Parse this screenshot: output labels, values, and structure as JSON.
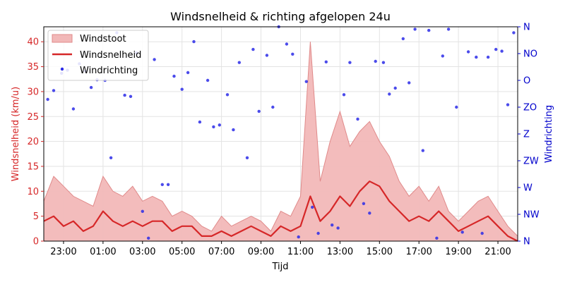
{
  "chart_data": {
    "type": "line",
    "title": "Windsnelheid & richting afgelopen 24u",
    "xlabel": "Tijd",
    "ylabel": "Windsnelheid (km/u)",
    "y2label": "Windrichting",
    "xlim": [
      -1.0,
      23.0
    ],
    "ylim": [
      0,
      43
    ],
    "y2lim": [
      0,
      360
    ],
    "x_unit": "hours since 23:00",
    "x_tick_labels": [
      "23:00",
      "01:00",
      "03:00",
      "05:00",
      "07:00",
      "09:00",
      "11:00",
      "13:00",
      "15:00",
      "17:00",
      "19:00",
      "21:00"
    ],
    "x_tick_values": [
      0,
      2,
      4,
      6,
      8,
      10,
      12,
      14,
      16,
      18,
      20,
      22
    ],
    "y_ticks": [
      0,
      5,
      10,
      15,
      20,
      25,
      30,
      35,
      40
    ],
    "y2_tick_labels": [
      "N",
      "NW",
      "W",
      "ZW",
      "Z",
      "ZO",
      "O",
      "NO",
      "N"
    ],
    "y2_tick_values": [
      0,
      45,
      90,
      135,
      180,
      225,
      270,
      315,
      360
    ],
    "legend": {
      "position": "top-left",
      "entries": [
        "Windstoot",
        "Windsnelheid",
        "Windrichting"
      ]
    },
    "grid": true,
    "colors": {
      "gust": "#e99a9a",
      "speed": "#d62728",
      "direction": "#1f1fe0",
      "left_axis": "#d62728",
      "right_axis": "#0000cc"
    },
    "speed": {
      "name": "Windsnelheid",
      "x": [
        -1.0,
        -0.5,
        0,
        0.5,
        1,
        1.5,
        2,
        2.5,
        3,
        3.5,
        4,
        4.5,
        5,
        5.5,
        6,
        6.5,
        7,
        7.5,
        8,
        8.5,
        9,
        9.5,
        10,
        10.5,
        11,
        11.5,
        12,
        12.5,
        13,
        13.5,
        14,
        14.5,
        15,
        15.5,
        16,
        16.5,
        17,
        17.5,
        18,
        18.5,
        19,
        19.5,
        20,
        20.5,
        21,
        21.5,
        22,
        22.5,
        23.0
      ],
      "values": [
        4,
        5,
        3,
        4,
        2,
        3,
        6,
        4,
        3,
        4,
        3,
        4,
        4,
        2,
        3,
        3,
        1,
        1,
        2,
        1,
        2,
        3,
        2,
        1,
        3,
        2,
        3,
        9,
        4,
        6,
        9,
        7,
        10,
        12,
        11,
        8,
        6,
        4,
        5,
        4,
        6,
        4,
        2,
        3,
        4,
        5,
        3,
        1,
        0
      ]
    },
    "gust": {
      "name": "Windstoot",
      "x": [
        -1.0,
        -0.5,
        0,
        0.5,
        1,
        1.5,
        2,
        2.5,
        3,
        3.5,
        4,
        4.5,
        5,
        5.5,
        6,
        6.5,
        7,
        7.5,
        8,
        8.5,
        9,
        9.5,
        10,
        10.5,
        11,
        11.5,
        12,
        12.5,
        13,
        13.5,
        14,
        14.5,
        15,
        15.5,
        16,
        16.5,
        17,
        17.5,
        18,
        18.5,
        19,
        19.5,
        20,
        20.5,
        21,
        21.5,
        22,
        22.5,
        23.0
      ],
      "values": [
        8,
        13,
        11,
        9,
        8,
        7,
        13,
        10,
        9,
        11,
        8,
        9,
        8,
        5,
        6,
        5,
        3,
        2,
        5,
        3,
        4,
        5,
        4,
        2,
        6,
        5,
        9,
        40,
        12,
        20,
        26,
        19,
        22,
        24,
        20,
        17,
        12,
        9,
        11,
        8,
        11,
        6,
        4,
        6,
        8,
        9,
        6,
        3,
        1
      ]
    },
    "direction": {
      "name": "Windrichting",
      "x": [
        -0.8,
        -0.5,
        -0.1,
        0.2,
        0.5,
        0.8,
        1.1,
        1.4,
        1.7,
        2.1,
        2.4,
        2.7,
        3.1,
        3.4,
        3.7,
        4.0,
        4.3,
        4.6,
        5.0,
        5.3,
        5.6,
        6.0,
        6.3,
        6.6,
        6.9,
        7.3,
        7.6,
        7.9,
        8.3,
        8.6,
        8.9,
        9.3,
        9.6,
        9.9,
        10.3,
        10.6,
        10.9,
        11.3,
        11.6,
        11.9,
        12.3,
        12.6,
        12.9,
        13.3,
        13.6,
        13.9,
        14.2,
        14.5,
        14.9,
        15.2,
        15.5,
        15.8,
        16.2,
        16.5,
        16.8,
        17.2,
        17.5,
        17.8,
        18.2,
        18.5,
        18.9,
        19.2,
        19.5,
        19.9,
        20.2,
        20.5,
        20.9,
        21.2,
        21.5,
        21.9,
        22.2,
        22.5,
        22.8
      ],
      "values": [
        238,
        253,
        282,
        287,
        222,
        298,
        285,
        258,
        271,
        270,
        140,
        350,
        245,
        243,
        316,
        50,
        5,
        305,
        95,
        95,
        277,
        255,
        283,
        335,
        200,
        270,
        192,
        195,
        246,
        187,
        300,
        140,
        322,
        218,
        312,
        225,
        360,
        331,
        314,
        7,
        268,
        57,
        13,
        301,
        27,
        22,
        246,
        300,
        205,
        63,
        47,
        302,
        300,
        247,
        257,
        340,
        266,
        356,
        152,
        354,
        5,
        311,
        356,
        225,
        15,
        318,
        309,
        13,
        309,
        322,
        319,
        229,
        350
      ]
    }
  }
}
